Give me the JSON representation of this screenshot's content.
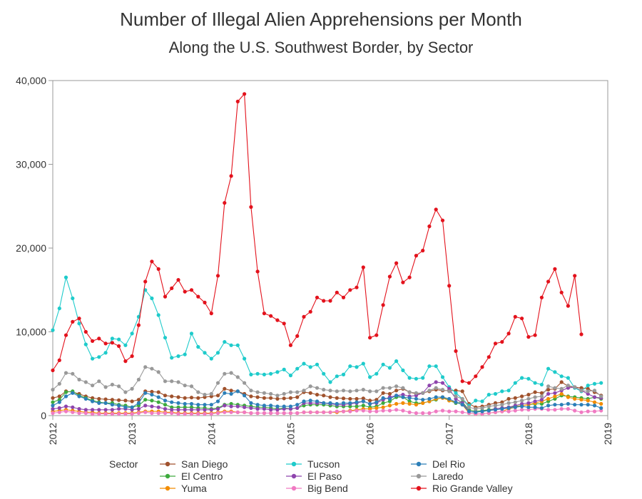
{
  "chart_data": {
    "type": "line",
    "title": "Number of Illegal Alien Apprehensions per Month",
    "subtitle": "Along the U.S. Southwest Border, by Sector",
    "xlabel": "",
    "ylabel": "",
    "xlim": [
      2012,
      2019
    ],
    "ylim": [
      0,
      40000
    ],
    "x_ticks": [
      "2012",
      "2013",
      "2014",
      "2015",
      "2016",
      "2017",
      "2018",
      "2019"
    ],
    "y_ticks": [
      "0",
      "10,000",
      "20,000",
      "30,000",
      "40,000"
    ],
    "grid": false,
    "legend_title": "Sector",
    "legend_position": "bottom",
    "x_start": "2012-01",
    "x_step": "month",
    "series": [
      {
        "name": "San Diego",
        "color": "#a0522d",
        "values": [
          2100,
          2300,
          2900,
          2800,
          2600,
          2300,
          2100,
          2000,
          1950,
          1900,
          1850,
          1800,
          1700,
          1900,
          2900,
          2850,
          2800,
          2400,
          2300,
          2200,
          2100,
          2150,
          2100,
          2200,
          2300,
          2400,
          3200,
          3000,
          2900,
          2600,
          2300,
          2200,
          2100,
          2100,
          2000,
          2050,
          2100,
          2200,
          2800,
          2700,
          2500,
          2400,
          2200,
          2100,
          2050,
          2000,
          2000,
          2050,
          1800,
          1900,
          2700,
          2600,
          3000,
          3200,
          2800,
          2600,
          2700,
          2900,
          3100,
          3000,
          3000,
          3000,
          2900,
          1400,
          1000,
          1100,
          1300,
          1500,
          1600,
          2000,
          2100,
          2300,
          2500,
          2800,
          2700,
          3100,
          3200,
          4000,
          3500,
          3400,
          3300,
          3200,
          2800,
          2400
        ]
      },
      {
        "name": "El Centro",
        "color": "#3daa3d",
        "values": [
          1600,
          1900,
          2800,
          2900,
          2400,
          2100,
          1800,
          1600,
          1500,
          1500,
          1300,
          1200,
          1000,
          1200,
          1900,
          1800,
          1600,
          1300,
          1000,
          1000,
          1000,
          1000,
          900,
          900,
          800,
          900,
          1300,
          1400,
          1300,
          1200,
          1100,
          1000,
          1000,
          900,
          800,
          900,
          800,
          900,
          1200,
          1300,
          1300,
          1300,
          1200,
          1100,
          1100,
          1100,
          1100,
          1200,
          1000,
          1100,
          1500,
          1700,
          2200,
          2200,
          1700,
          1500,
          1500,
          1700,
          1900,
          2200,
          1800,
          1500,
          1600,
          700,
          500,
          600,
          700,
          800,
          900,
          1000,
          1100,
          1200,
          1300,
          1400,
          1400,
          1700,
          2000,
          2400,
          2300,
          2200,
          2100,
          2000,
          2200,
          2000
        ]
      },
      {
        "name": "Yuma",
        "color": "#f28c00",
        "values": [
          500,
          600,
          700,
          600,
          500,
          400,
          400,
          300,
          300,
          300,
          300,
          300,
          300,
          400,
          500,
          500,
          500,
          400,
          400,
          300,
          300,
          300,
          300,
          300,
          300,
          400,
          500,
          500,
          400,
          400,
          300,
          300,
          300,
          300,
          300,
          300,
          300,
          300,
          400,
          400,
          400,
          400,
          400,
          400,
          500,
          600,
          700,
          800,
          800,
          900,
          1000,
          1200,
          1400,
          1500,
          1400,
          1300,
          1500,
          1700,
          2000,
          2100,
          1800,
          1600,
          1300,
          300,
          200,
          200,
          300,
          400,
          500,
          800,
          1000,
          1200,
          1300,
          1500,
          1700,
          2000,
          2300,
          2600,
          2200,
          2000,
          1900,
          1800,
          1600,
          1400
        ]
      },
      {
        "name": "Tucson",
        "color": "#1ecbcb",
        "values": [
          10200,
          12800,
          16500,
          14000,
          11000,
          8500,
          6800,
          7000,
          7500,
          9200,
          9100,
          8400,
          9800,
          11800,
          15000,
          14000,
          12000,
          9300,
          6900,
          7100,
          7300,
          9800,
          8200,
          7500,
          6800,
          7500,
          8800,
          8400,
          8400,
          6800,
          4900,
          5000,
          4900,
          5000,
          5200,
          5500,
          4800,
          5600,
          6200,
          5800,
          6100,
          5000,
          4000,
          4700,
          4900,
          5900,
          5800,
          6200,
          4600,
          5000,
          6100,
          5700,
          6500,
          5400,
          4500,
          4400,
          4500,
          5900,
          5900,
          4600,
          3400,
          2700,
          2000,
          1200,
          1800,
          1700,
          2500,
          2600,
          2900,
          3000,
          3900,
          4500,
          4400,
          3900,
          3700,
          5600,
          5200,
          4700,
          4500,
          3300,
          2900,
          3600,
          3800,
          3900
        ]
      },
      {
        "name": "El Paso",
        "color": "#8e44ad",
        "values": [
          800,
          900,
          1100,
          1000,
          800,
          700,
          700,
          700,
          700,
          700,
          800,
          800,
          700,
          800,
          1200,
          1100,
          1000,
          800,
          700,
          700,
          700,
          700,
          700,
          700,
          700,
          800,
          1200,
          1100,
          1100,
          1000,
          900,
          800,
          800,
          700,
          700,
          800,
          800,
          900,
          1500,
          1500,
          1500,
          1500,
          1400,
          1300,
          1300,
          1400,
          1500,
          1700,
          1400,
          1500,
          1900,
          2200,
          2400,
          2500,
          2300,
          2400,
          2700,
          3600,
          4000,
          3900,
          3200,
          2000,
          1500,
          500,
          400,
          500,
          600,
          800,
          900,
          1000,
          1200,
          1400,
          1500,
          1700,
          1900,
          2600,
          2700,
          3000,
          3300,
          3400,
          3000,
          2600,
          2200,
          2100
        ]
      },
      {
        "name": "Big Bend",
        "color": "#f07ac2",
        "values": [
          300,
          400,
          500,
          400,
          300,
          300,
          200,
          200,
          200,
          200,
          200,
          200,
          200,
          300,
          400,
          300,
          300,
          300,
          300,
          200,
          200,
          200,
          200,
          200,
          200,
          300,
          400,
          400,
          400,
          400,
          300,
          300,
          300,
          300,
          300,
          300,
          300,
          300,
          400,
          400,
          400,
          400,
          400,
          500,
          500,
          500,
          600,
          600,
          500,
          500,
          600,
          600,
          700,
          600,
          400,
          300,
          300,
          300,
          500,
          600,
          500,
          500,
          400,
          300,
          200,
          200,
          300,
          400,
          500,
          500,
          600,
          700,
          700,
          800,
          800,
          700,
          700,
          800,
          800,
          600,
          400,
          500,
          500,
          600
        ]
      },
      {
        "name": "Del Rio",
        "color": "#2c7fb8",
        "values": [
          1200,
          1600,
          2300,
          2700,
          2300,
          2000,
          1700,
          1500,
          1500,
          1300,
          1200,
          1000,
          1000,
          1500,
          2700,
          2500,
          2200,
          1800,
          1600,
          1500,
          1400,
          1400,
          1300,
          1300,
          1300,
          1700,
          2700,
          2600,
          2900,
          2400,
          1500,
          1300,
          1200,
          1200,
          1100,
          1100,
          1100,
          1300,
          1700,
          1800,
          1700,
          1500,
          1500,
          1400,
          1500,
          1500,
          1600,
          1700,
          1400,
          1600,
          2100,
          2000,
          2400,
          2200,
          2100,
          2000,
          1900,
          2000,
          2200,
          2200,
          2000,
          1600,
          1300,
          500,
          400,
          500,
          600,
          700,
          800,
          900,
          1000,
          1100,
          1000,
          1000,
          900,
          1200,
          1300,
          1300,
          1400,
          1300,
          1300,
          1300,
          1200,
          900
        ]
      },
      {
        "name": "Laredo",
        "color": "#999999",
        "values": [
          3100,
          3800,
          5100,
          5000,
          4300,
          4000,
          3600,
          4100,
          3400,
          3700,
          3500,
          2800,
          3200,
          4300,
          5800,
          5600,
          5200,
          4100,
          4100,
          4000,
          3600,
          3500,
          2800,
          2500,
          2600,
          3900,
          5000,
          5100,
          4600,
          3900,
          3000,
          2800,
          2700,
          2600,
          2400,
          2600,
          2800,
          2800,
          3000,
          3500,
          3300,
          3100,
          3000,
          2900,
          3000,
          2900,
          3000,
          3100,
          2900,
          2900,
          3300,
          3300,
          3500,
          3300,
          2800,
          2700,
          2700,
          3000,
          3300,
          3100,
          2900,
          2300,
          2000,
          1000,
          800,
          900,
          1100,
          1200,
          1300,
          1500,
          1600,
          1800,
          2000,
          2200,
          2300,
          3500,
          3300,
          3200,
          3600,
          3400,
          3000,
          2900,
          3000,
          2300
        ]
      },
      {
        "name": "Rio Grande Valley",
        "color": "#e3121c",
        "values": [
          5400,
          6600,
          9600,
          11200,
          11600,
          10000,
          8900,
          9200,
          8600,
          8700,
          8300,
          6500,
          7100,
          10800,
          16000,
          18400,
          17500,
          14200,
          15200,
          16200,
          14800,
          15000,
          14200,
          13500,
          12200,
          16700,
          25400,
          28600,
          37500,
          38400,
          24900,
          17200,
          12200,
          11900,
          11400,
          11000,
          8400,
          9500,
          11800,
          12400,
          14100,
          13700,
          13700,
          14700,
          14100,
          15000,
          15300,
          17700,
          9300,
          9600,
          13200,
          16600,
          18200,
          15900,
          16500,
          19100,
          19700,
          22600,
          24600,
          23300,
          15500,
          7700,
          4100,
          3900,
          4700,
          5800,
          7000,
          8600,
          8800,
          9800,
          11800,
          11600,
          9400,
          9600,
          14100,
          16000,
          17500,
          14700,
          13100,
          16700,
          9700
        ]
      }
    ]
  }
}
